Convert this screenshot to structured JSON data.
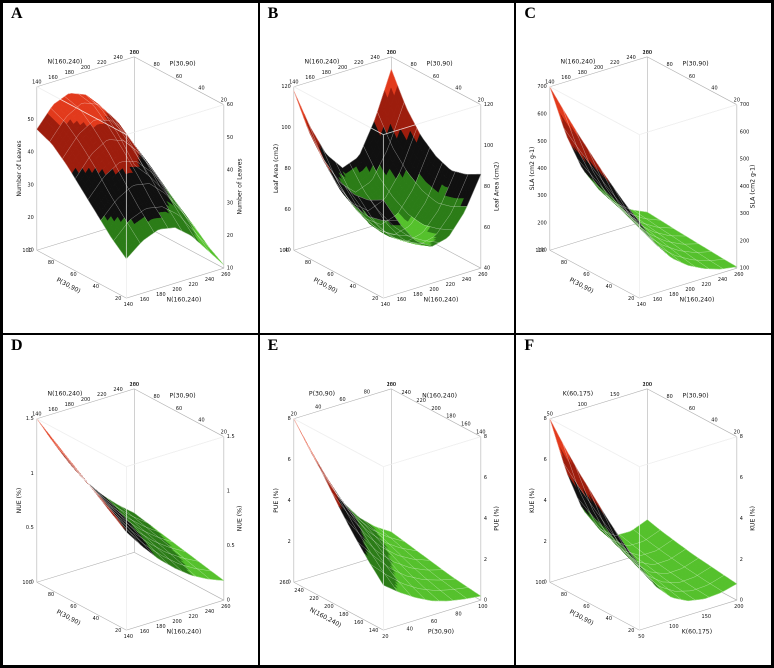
{
  "figure": {
    "background": "#ffffff",
    "border_color": "#000000"
  },
  "colors": {
    "bands": [
      "#55c12c",
      "#2b7c17",
      "#101010",
      "#9d1d0d",
      "#e23a1c"
    ],
    "band_thresholds": [
      0.22,
      0.4,
      0.6,
      0.8
    ],
    "box_edge": "#b0b0b0",
    "tick_text": "#111111"
  },
  "chart_data": [
    {
      "type": "surface",
      "label": "A",
      "z_label": "Number of Leaves",
      "x_label": "N(160,240)",
      "y_label": "P(30,90)",
      "x_range": [
        140,
        260
      ],
      "y_range": [
        20,
        100
      ],
      "z_range": [
        10,
        60
      ],
      "x_ticks": [
        140,
        160,
        180,
        200,
        220,
        240,
        260
      ],
      "y_ticks": [
        20,
        40,
        60,
        80,
        100
      ],
      "z_ticks_left": [
        10,
        20,
        30,
        40,
        50
      ],
      "z_ticks_right": [
        10,
        20,
        30,
        40,
        50,
        60
      ],
      "surface": [
        [
          22,
          26,
          28,
          27,
          23,
          17,
          11
        ],
        [
          26,
          31,
          33,
          32,
          28,
          21,
          14
        ],
        [
          31,
          36,
          39,
          38,
          33,
          26,
          18
        ],
        [
          36,
          42,
          45,
          43,
          38,
          30,
          21
        ],
        [
          41,
          47,
          50,
          48,
          42,
          34,
          24
        ],
        [
          45,
          51,
          54,
          52,
          46,
          37,
          26
        ],
        [
          47,
          53,
          55,
          53,
          47,
          38,
          27
        ]
      ]
    },
    {
      "type": "surface",
      "label": "B",
      "z_label": "Leaf Area (cm2)",
      "x_label": "N(160,240)",
      "y_label": "P(30,90)",
      "x_range": [
        140,
        260
      ],
      "y_range": [
        20,
        100
      ],
      "z_range": [
        40,
        120
      ],
      "x_ticks": [
        140,
        160,
        180,
        200,
        220,
        240,
        260
      ],
      "y_ticks": [
        20,
        40,
        60,
        80,
        100
      ],
      "z_ticks_left": [
        40,
        60,
        80,
        100,
        120
      ],
      "z_ticks_right": [
        40,
        60,
        80,
        100,
        120
      ],
      "surface": [
        [
          88,
          74,
          63,
          58,
          60,
          70,
          86
        ],
        [
          84,
          70,
          60,
          55,
          57,
          66,
          82
        ],
        [
          83,
          68,
          58,
          53,
          55,
          64,
          80
        ],
        [
          86,
          70,
          59,
          54,
          56,
          66,
          83
        ],
        [
          92,
          75,
          63,
          57,
          60,
          71,
          89
        ],
        [
          102,
          84,
          70,
          63,
          66,
          79,
          99
        ],
        [
          118,
          98,
          82,
          73,
          76,
          92,
          114
        ]
      ]
    },
    {
      "type": "surface",
      "label": "C",
      "z_label": "SLA (cm2 g-1)",
      "x_label": "N(160,240)",
      "y_label": "P(30,90)",
      "x_range": [
        140,
        260
      ],
      "y_range": [
        20,
        100
      ],
      "z_range": [
        100,
        700
      ],
      "x_ticks": [
        140,
        160,
        180,
        200,
        220,
        240,
        260
      ],
      "y_ticks": [
        20,
        40,
        60,
        80,
        100
      ],
      "z_ticks_left": [
        100,
        200,
        300,
        400,
        500,
        600,
        700
      ],
      "z_ticks_right": [
        100,
        200,
        300,
        400,
        500,
        600,
        700
      ],
      "surface": [
        [
          380,
          280,
          210,
          165,
          135,
          115,
          105
        ],
        [
          420,
          308,
          228,
          178,
          144,
          121,
          108
        ],
        [
          468,
          342,
          252,
          194,
          154,
          127,
          112
        ],
        [
          520,
          378,
          278,
          212,
          165,
          134,
          116
        ],
        [
          576,
          418,
          304,
          230,
          176,
          141,
          120
        ],
        [
          636,
          460,
          332,
          249,
          188,
          149,
          125
        ],
        [
          700,
          505,
          362,
          269,
          200,
          157,
          130
        ]
      ]
    },
    {
      "type": "surface",
      "label": "D",
      "z_label": "NUE (%)",
      "x_label": "N(160,240)",
      "y_label": "P(30,90)",
      "x_range": [
        140,
        260
      ],
      "y_range": [
        20,
        100
      ],
      "z_range": [
        0,
        1.5
      ],
      "x_ticks": [
        140,
        160,
        180,
        200,
        220,
        240,
        260
      ],
      "y_ticks": [
        20,
        40,
        60,
        80,
        100
      ],
      "z_ticks_left": [
        0,
        0.5,
        1,
        1.5
      ],
      "z_ticks_right": [
        0,
        0.5,
        1,
        1.5
      ],
      "surface": [
        [
          0.9,
          0.72,
          0.56,
          0.43,
          0.32,
          0.24,
          0.18
        ],
        [
          1.0,
          0.8,
          0.63,
          0.49,
          0.37,
          0.28,
          0.21
        ],
        [
          1.1,
          0.89,
          0.7,
          0.55,
          0.42,
          0.32,
          0.24
        ],
        [
          1.2,
          0.97,
          0.78,
          0.61,
          0.47,
          0.36,
          0.27
        ],
        [
          1.3,
          1.06,
          0.85,
          0.67,
          0.52,
          0.4,
          0.3
        ],
        [
          1.4,
          1.15,
          0.92,
          0.73,
          0.57,
          0.44,
          0.33
        ],
        [
          1.5,
          1.24,
          1.0,
          0.79,
          0.62,
          0.48,
          0.36
        ]
      ]
    },
    {
      "type": "surface",
      "label": "E",
      "z_label": "PUE (%)",
      "x_label": "P(30,90)",
      "y_label": "N(160,240)",
      "x_range": [
        20,
        100
      ],
      "y_range": [
        140,
        260
      ],
      "z_range": [
        0,
        8
      ],
      "x_ticks": [
        20,
        40,
        60,
        80,
        100
      ],
      "y_ticks": [
        140,
        160,
        180,
        200,
        220,
        240,
        260
      ],
      "z_ticks_left": [
        0,
        2,
        4,
        6,
        8
      ],
      "z_ticks_right": [
        0,
        2,
        4,
        6,
        8
      ],
      "surface": [
        [
          2.2,
          1.6,
          1.1,
          0.7,
          0.45,
          0.3,
          0.2
        ],
        [
          3.0,
          2.2,
          1.5,
          1.0,
          0.65,
          0.45,
          0.3
        ],
        [
          3.9,
          2.9,
          2.0,
          1.35,
          0.9,
          0.6,
          0.4
        ],
        [
          4.9,
          3.7,
          2.6,
          1.8,
          1.2,
          0.8,
          0.55
        ],
        [
          6.0,
          4.6,
          3.3,
          2.3,
          1.55,
          1.05,
          0.7
        ],
        [
          7.0,
          5.4,
          3.9,
          2.75,
          1.9,
          1.3,
          0.85
        ],
        [
          8.0,
          6.2,
          4.5,
          3.2,
          2.2,
          1.5,
          1.0
        ]
      ]
    },
    {
      "type": "surface",
      "label": "F",
      "z_label": "KUE (%)",
      "x_label": "K(60,175)",
      "y_label": "P(30,90)",
      "x_range": [
        50,
        200
      ],
      "y_range": [
        20,
        100
      ],
      "z_range": [
        0,
        8
      ],
      "x_ticks": [
        50,
        100,
        150,
        200
      ],
      "y_ticks": [
        20,
        40,
        60,
        80,
        100
      ],
      "z_ticks_left": [
        0,
        2,
        4,
        6,
        8
      ],
      "z_ticks_right": [
        0,
        2,
        4,
        6,
        8
      ],
      "surface": [
        [
          3.2,
          1.9,
          1.1,
          0.7,
          0.55,
          0.6,
          0.8
        ],
        [
          3.8,
          2.3,
          1.35,
          0.85,
          0.62,
          0.66,
          0.9
        ],
        [
          4.5,
          2.8,
          1.6,
          1.0,
          0.7,
          0.74,
          1.0
        ],
        [
          5.3,
          3.3,
          1.95,
          1.2,
          0.82,
          0.84,
          1.1
        ],
        [
          6.1,
          3.9,
          2.3,
          1.4,
          0.95,
          0.96,
          1.25
        ],
        [
          7.0,
          4.5,
          2.7,
          1.65,
          1.1,
          1.1,
          1.4
        ],
        [
          8.0,
          5.2,
          3.1,
          1.9,
          1.3,
          1.28,
          1.6
        ]
      ]
    }
  ]
}
